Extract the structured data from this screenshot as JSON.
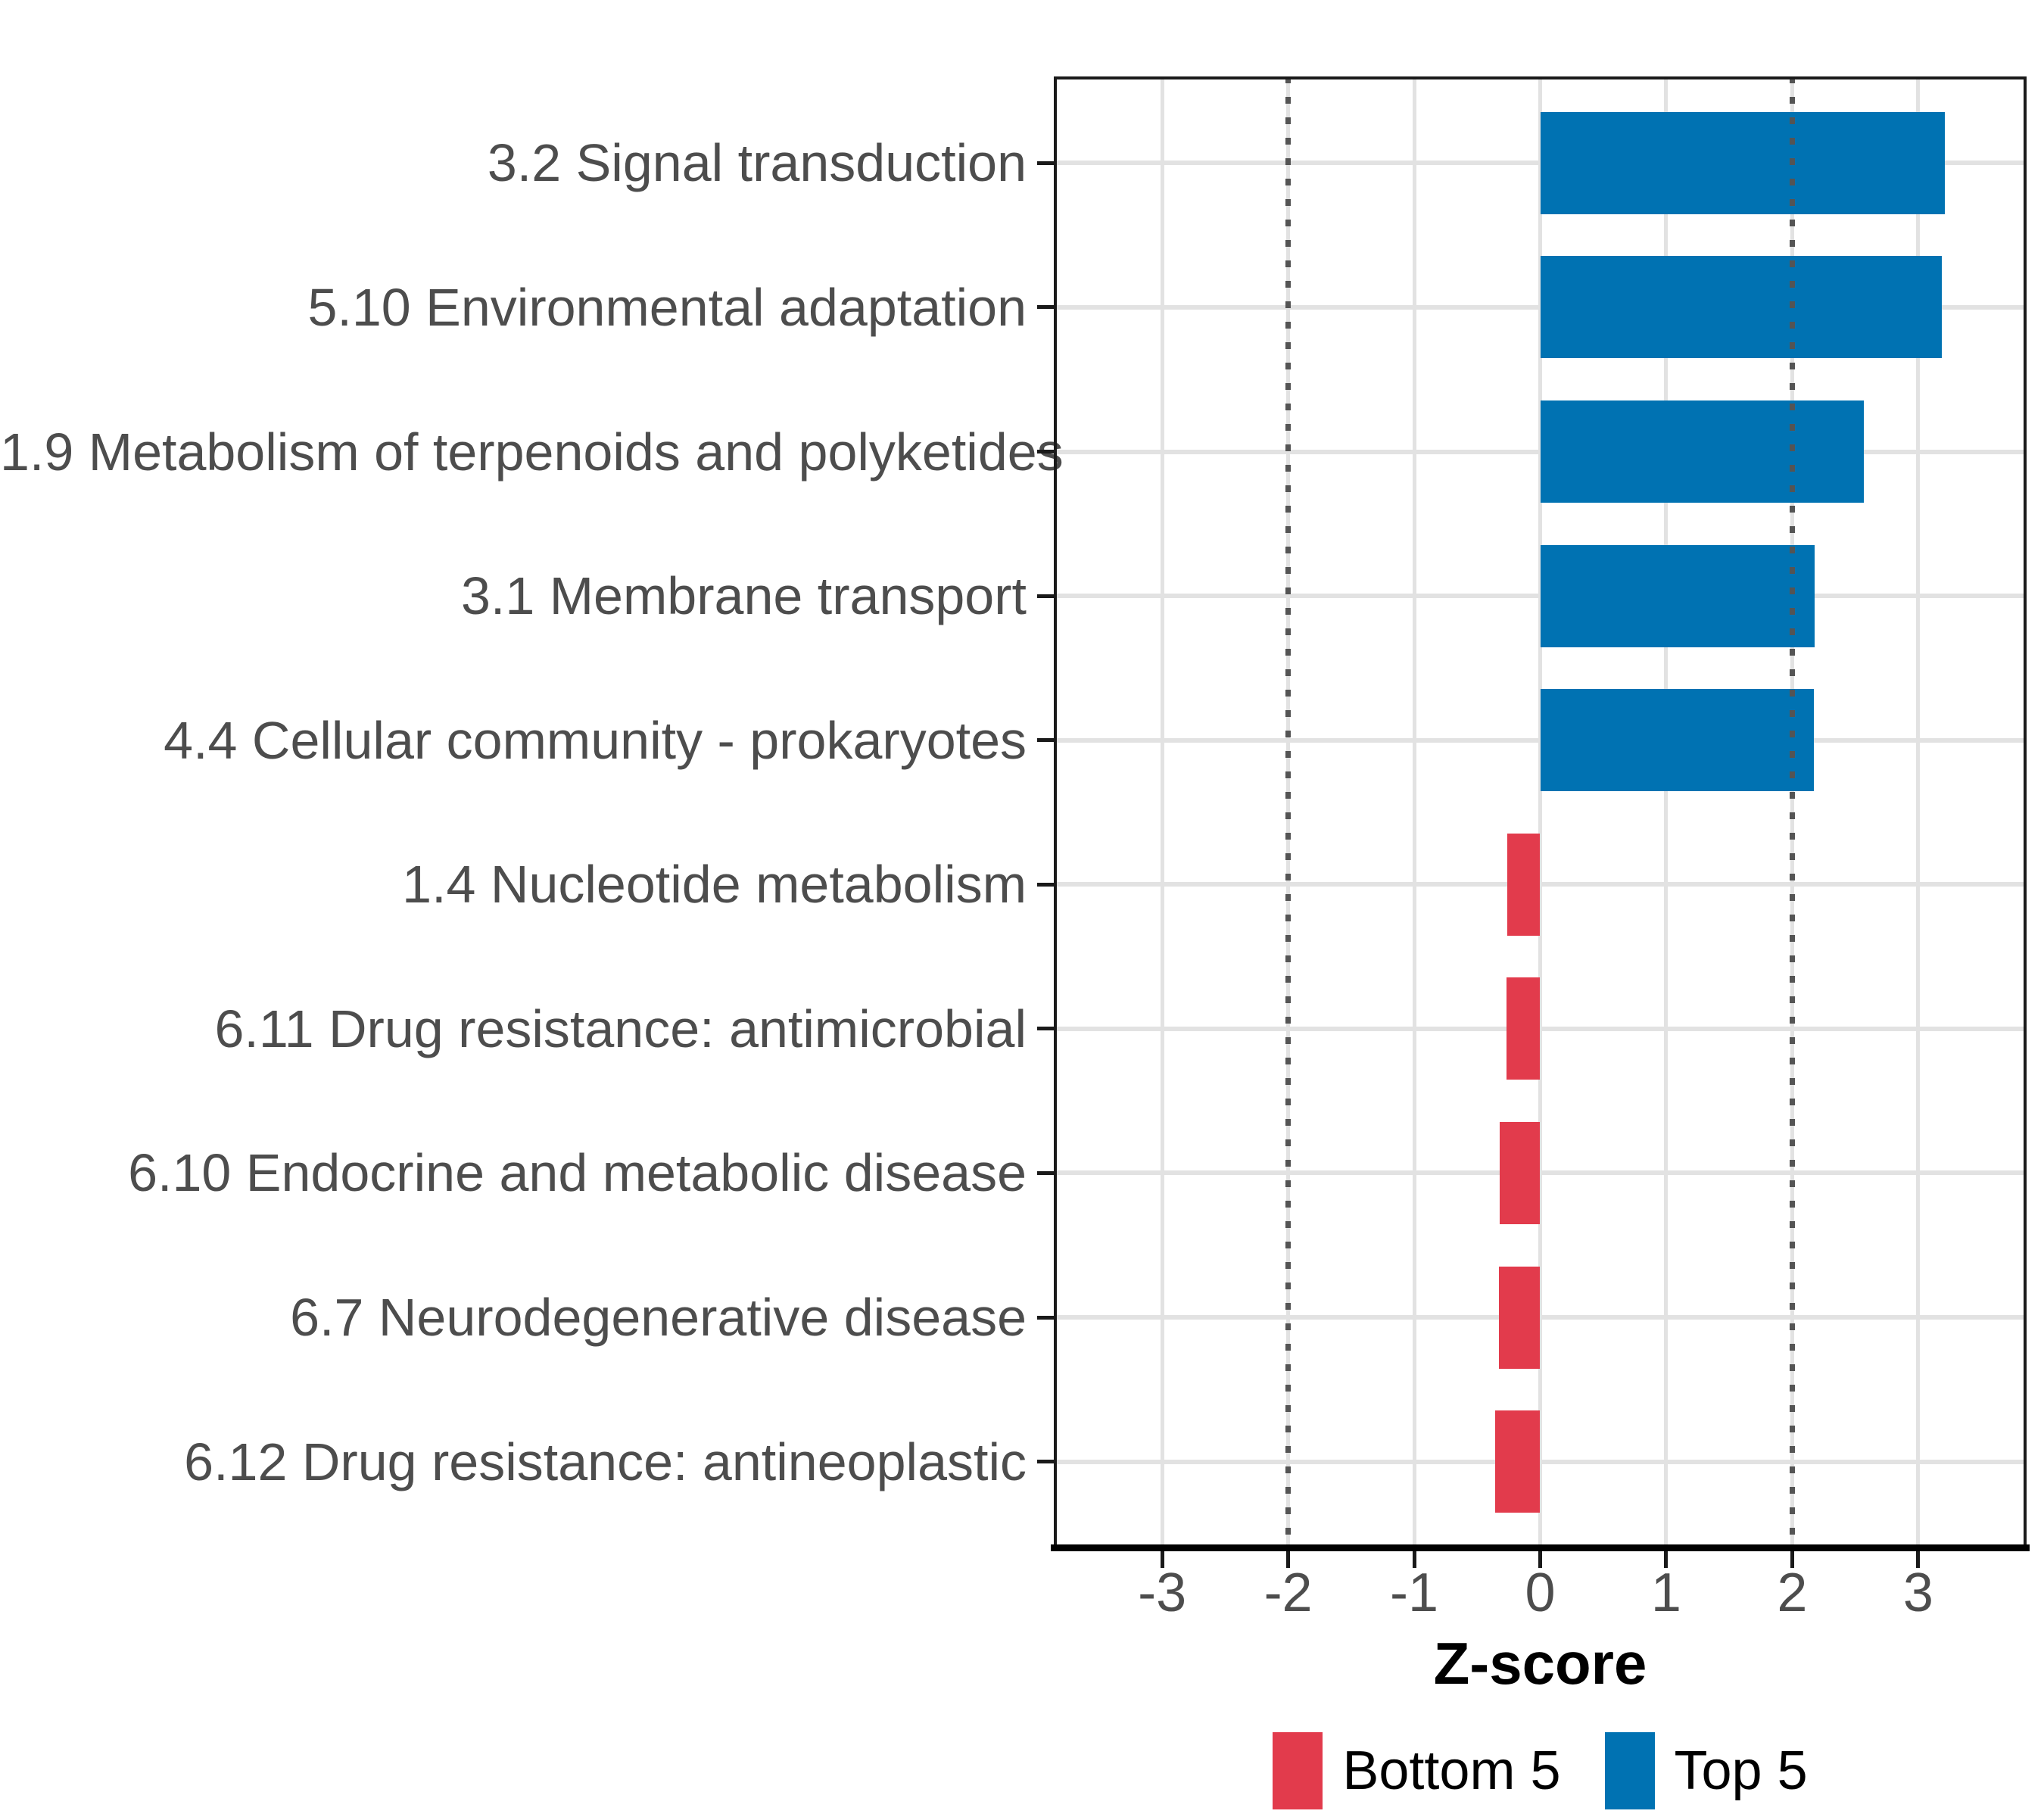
{
  "chart_data": {
    "type": "bar",
    "orientation": "horizontal",
    "title": "",
    "xlabel": "Z-score",
    "categories": [
      "3.2 Signal transduction",
      "5.10 Environmental adaptation",
      "1.9 Metabolism of terpenoids and polyketides",
      "3.1 Membrane transport",
      "4.4 Cellular community - prokaryotes",
      "1.4 Nucleotide metabolism",
      "6.11 Drug resistance: antimicrobial",
      "6.10 Endocrine and metabolic disease",
      "6.7 Neurodegenerative disease",
      "6.12 Drug resistance: antineoplastic"
    ],
    "values": [
      3.21,
      3.19,
      2.57,
      2.18,
      2.17,
      -0.26,
      -0.27,
      -0.32,
      -0.33,
      -0.36
    ],
    "groups": [
      "Top 5",
      "Top 5",
      "Top 5",
      "Top 5",
      "Top 5",
      "Bottom 5",
      "Bottom 5",
      "Bottom 5",
      "Bottom 5",
      "Bottom 5"
    ],
    "x_ticks": [
      -3,
      -2,
      -1,
      0,
      1,
      2,
      3
    ],
    "x_tick_labels": [
      "-3",
      "-2",
      "-1",
      "0",
      "1",
      "2",
      "3"
    ],
    "xlim": [
      -3.86,
      3.86
    ],
    "reference_lines": [
      -2,
      2
    ],
    "grid": "major",
    "legend_position": "bottom",
    "legend": [
      {
        "label": "Bottom 5",
        "color": "#E23B4C"
      },
      {
        "label": "Top 5",
        "color": "#0072B2"
      }
    ],
    "colors": {
      "top5_bar": "#0072B2",
      "bottom5_bar": "#E23B4C",
      "gridline": "#E2E2E2",
      "reference_line": "#545454",
      "axis_text": "#4D4D4D",
      "axis_title": "#000000",
      "panel_border": "#1A1A1A",
      "background": "#FFFFFF"
    }
  }
}
